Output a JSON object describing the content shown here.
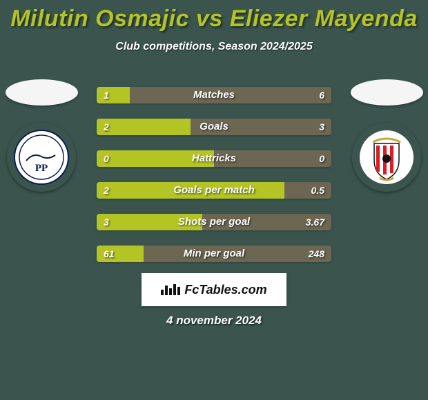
{
  "title": "Milutin Osmajic vs Eliezer Mayenda",
  "title_color": "#b4c425",
  "subtitle": "Club competitions, Season 2024/2025",
  "date": "4 november 2024",
  "background_color": "#3b554e",
  "logo_text": "FcTables.com",
  "player_left": {
    "crest_bg": "#ffffff",
    "crest_label": "PP",
    "crest_label_color": "#0a1b4d"
  },
  "player_right": {
    "crest_bg": "#ffffff",
    "crest_accent": "#d81e24"
  },
  "left_fill_color": "#b4c425",
  "right_fill_color": "#6d6652",
  "stats": [
    {
      "label": "Matches",
      "left_val": "1",
      "right_val": "6",
      "left_pct": 14,
      "right_pct": 86
    },
    {
      "label": "Goals",
      "left_val": "2",
      "right_val": "3",
      "left_pct": 40,
      "right_pct": 60
    },
    {
      "label": "Hattricks",
      "left_val": "0",
      "right_val": "0",
      "left_pct": 50,
      "right_pct": 50
    },
    {
      "label": "Goals per match",
      "left_val": "2",
      "right_val": "0.5",
      "left_pct": 80,
      "right_pct": 20
    },
    {
      "label": "Shots per goal",
      "left_val": "3",
      "right_val": "3.67",
      "left_pct": 45,
      "right_pct": 55
    },
    {
      "label": "Min per goal",
      "left_val": "61",
      "right_val": "248",
      "left_pct": 20,
      "right_pct": 80
    }
  ]
}
